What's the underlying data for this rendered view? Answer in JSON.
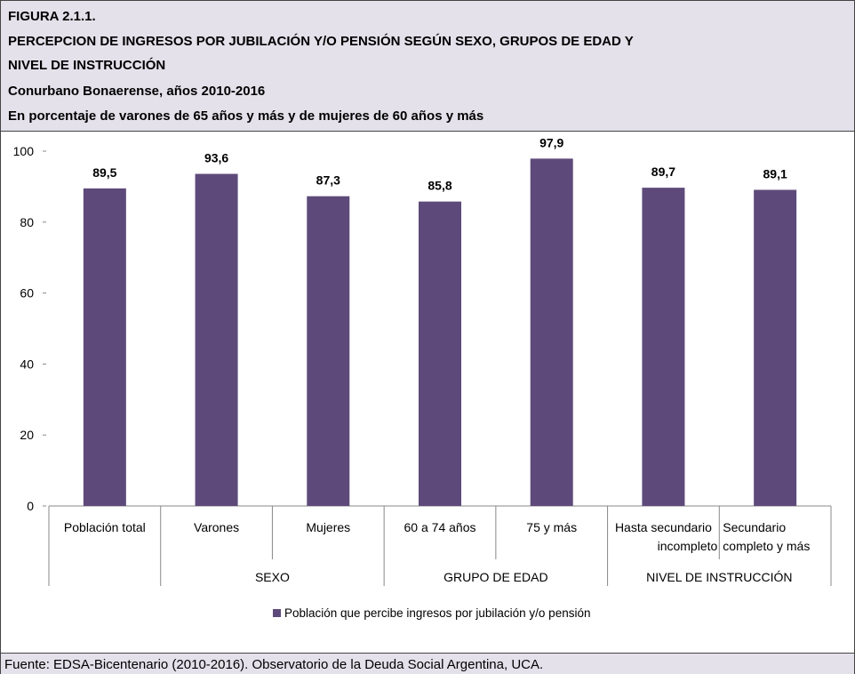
{
  "header": {
    "figure_label": "FIGURA 2.1.1.",
    "title_line1": "PERCEPCION DE INGRESOS POR JUBILACIÓN Y/O PENSIÓN SEGÚN SEXO, GRUPOS DE EDAD Y",
    "title_line2": "NIVEL DE INSTRUCCIÓN",
    "subtitle": "Conurbano Bonaerense, años 2010-2016",
    "units_note": "En porcentaje de varones de 65 años y más y de mujeres de 60 años y más"
  },
  "footer": {
    "source": "Fuente: EDSA-Bicentenario (2010-2016). Observatorio de la Deuda Social Argentina, UCA."
  },
  "chart_data": {
    "type": "bar",
    "categories": [
      "Población total",
      "Varones",
      "Mujeres",
      "60 a 74 años",
      "75 y más",
      "Hasta secundario incompleto",
      "Secundario completo y más"
    ],
    "category_lines": [
      [
        "Población total"
      ],
      [
        "Varones"
      ],
      [
        "Mujeres"
      ],
      [
        "60 a 74 años"
      ],
      [
        "75 y más"
      ],
      [
        "Hasta secundario",
        "incompleto"
      ],
      [
        "Secundario",
        "completo y más"
      ]
    ],
    "groups": [
      {
        "label": "",
        "categories": [
          "Población total"
        ]
      },
      {
        "label": "SEXO",
        "categories": [
          "Varones",
          "Mujeres"
        ]
      },
      {
        "label": "GRUPO DE EDAD",
        "categories": [
          "60 a 74 años",
          "75 y más"
        ]
      },
      {
        "label": "NIVEL DE INSTRUCCIÓN",
        "categories": [
          "Hasta secundario incompleto",
          "Secundario completo y más"
        ]
      }
    ],
    "series": [
      {
        "name": "Población que percibe ingresos por jubilación y/o pensión",
        "values": [
          89.5,
          93.6,
          87.3,
          85.8,
          97.9,
          89.7,
          89.1
        ],
        "labels": [
          "89,5",
          "93,6",
          "87,3",
          "85,8",
          "97,9",
          "89,7",
          "89,1"
        ],
        "color": "#5e4a7a"
      }
    ],
    "ylim": [
      0,
      100
    ],
    "yticks": [
      0,
      20,
      40,
      60,
      80,
      100
    ],
    "grid": false,
    "legend_position": "bottom"
  }
}
